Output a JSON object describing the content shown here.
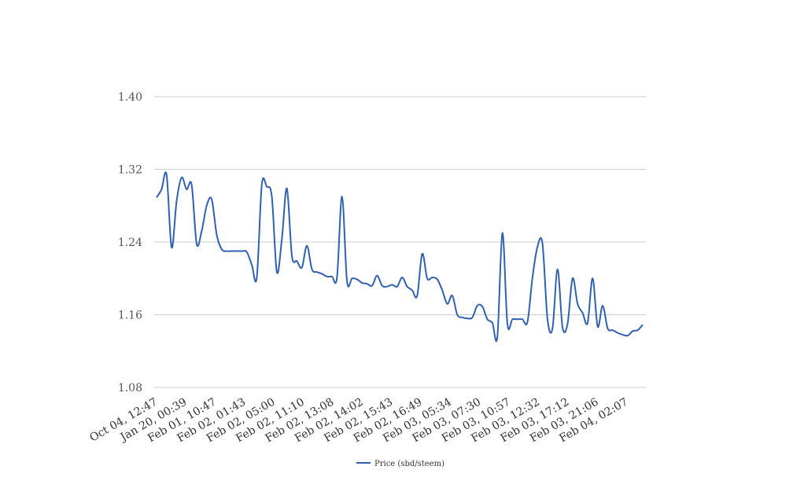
{
  "chart_data": {
    "type": "line",
    "title": "",
    "xlabel": "",
    "ylabel": "",
    "ylim": [
      1.08,
      1.4
    ],
    "y_ticks": [
      "1.08",
      "1.16",
      "1.24",
      "1.32",
      "1.40"
    ],
    "grid": true,
    "legend_position": "bottom-center",
    "x_tick_labels": [
      "Oct 04, 12:47",
      "Jan 20, 00:39",
      "Feb 01, 10:47",
      "Feb 02, 01:43",
      "Feb 02, 05:00",
      "Feb 02, 11:10",
      "Feb 02, 13:08",
      "Feb 02, 14:02",
      "Feb 02, 15:43",
      "Feb 02, 16:49",
      "Feb 03, 05:34",
      "Feb 03, 07:30",
      "Feb 03, 10:57",
      "Feb 03, 12:32",
      "Feb 03, 17:12",
      "Feb 03, 21:06",
      "Feb 04, 02:07"
    ],
    "series": [
      {
        "name": "Price (sbd/steem)",
        "color": "#3060b0",
        "values": [
          1.289,
          1.298,
          1.314,
          1.234,
          1.285,
          1.311,
          1.298,
          1.303,
          1.238,
          1.252,
          1.28,
          1.287,
          1.248,
          1.232,
          1.23,
          1.23,
          1.23,
          1.23,
          1.229,
          1.215,
          1.201,
          1.303,
          1.301,
          1.29,
          1.207,
          1.243,
          1.299,
          1.225,
          1.219,
          1.212,
          1.236,
          1.21,
          1.207,
          1.205,
          1.202,
          1.202,
          1.201,
          1.29,
          1.197,
          1.2,
          1.199,
          1.195,
          1.194,
          1.192,
          1.203,
          1.192,
          1.191,
          1.193,
          1.191,
          1.201,
          1.191,
          1.187,
          1.181,
          1.227,
          1.2,
          1.201,
          1.199,
          1.187,
          1.172,
          1.181,
          1.16,
          1.157,
          1.156,
          1.157,
          1.17,
          1.169,
          1.155,
          1.151,
          1.136,
          1.25,
          1.15,
          1.155,
          1.155,
          1.155,
          1.152,
          1.201,
          1.235,
          1.238,
          1.155,
          1.145,
          1.21,
          1.146,
          1.15,
          1.2,
          1.172,
          1.162,
          1.151,
          1.2,
          1.147,
          1.17,
          1.145,
          1.143,
          1.14,
          1.138,
          1.137,
          1.142,
          1.143,
          1.149
        ]
      }
    ]
  }
}
